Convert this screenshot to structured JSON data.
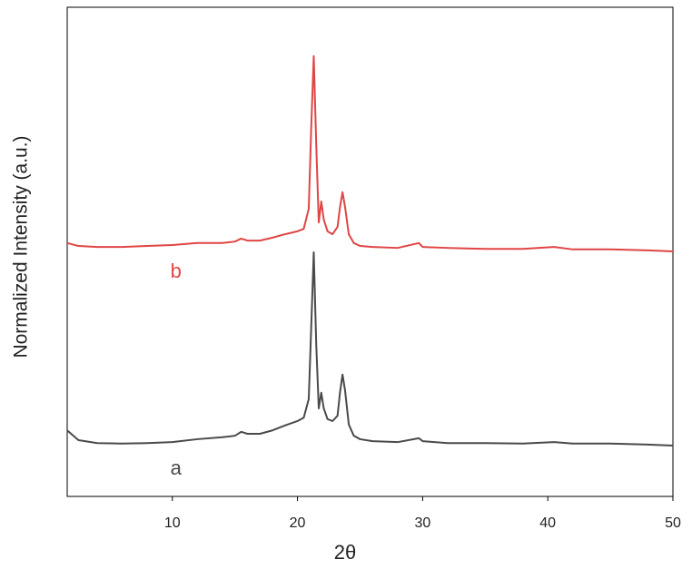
{
  "chart_data": {
    "type": "line",
    "x_label": "2θ",
    "y_label": "Normalized Intensity (a.u.)",
    "x": [
      1.6,
      2.5,
      4,
      6,
      8,
      10,
      12,
      14,
      15,
      15.5,
      16,
      17,
      18,
      19,
      20,
      20.5,
      20.9,
      21.1,
      21.3,
      21.5,
      21.7,
      21.9,
      22.1,
      22.4,
      22.8,
      23.2,
      23.4,
      23.6,
      23.8,
      24.1,
      24.5,
      25,
      26,
      28,
      29.7,
      30,
      32,
      35,
      38,
      40.5,
      42,
      45,
      48,
      50
    ],
    "series": [
      {
        "name": "a",
        "color": "#4a4a4a",
        "values": [
          13.5,
          11.5,
          10.9,
          10.8,
          10.9,
          11.1,
          11.7,
          12.1,
          12.4,
          13.2,
          12.8,
          12.8,
          13.5,
          14.5,
          15.4,
          16.1,
          19.9,
          34.7,
          49.9,
          31.0,
          18.0,
          21.2,
          18.0,
          15.8,
          15.4,
          16.5,
          21.3,
          24.9,
          21.7,
          14.7,
          12.4,
          11.7,
          11.3,
          11.1,
          11.9,
          11.3,
          10.9,
          10.9,
          10.8,
          11.1,
          10.8,
          10.8,
          10.6,
          10.4
        ]
      },
      {
        "name": "b",
        "color": "#e04545",
        "values": [
          51.8,
          51.2,
          51.0,
          51.0,
          51.2,
          51.4,
          51.8,
          51.8,
          52.1,
          52.7,
          52.3,
          52.3,
          52.9,
          53.6,
          54.2,
          54.7,
          58.8,
          75.5,
          90.0,
          71.8,
          56.0,
          60.3,
          56.6,
          54.2,
          53.6,
          55.1,
          59.2,
          62.2,
          59.2,
          53.6,
          51.8,
          51.2,
          51.0,
          50.8,
          51.8,
          51.0,
          50.8,
          50.6,
          50.6,
          51.0,
          50.5,
          50.5,
          50.3,
          50.1
        ]
      }
    ],
    "xlim": [
      1.6,
      50
    ],
    "xticks": [
      10,
      20,
      30,
      40,
      50
    ],
    "ylim": [
      0,
      100
    ]
  }
}
